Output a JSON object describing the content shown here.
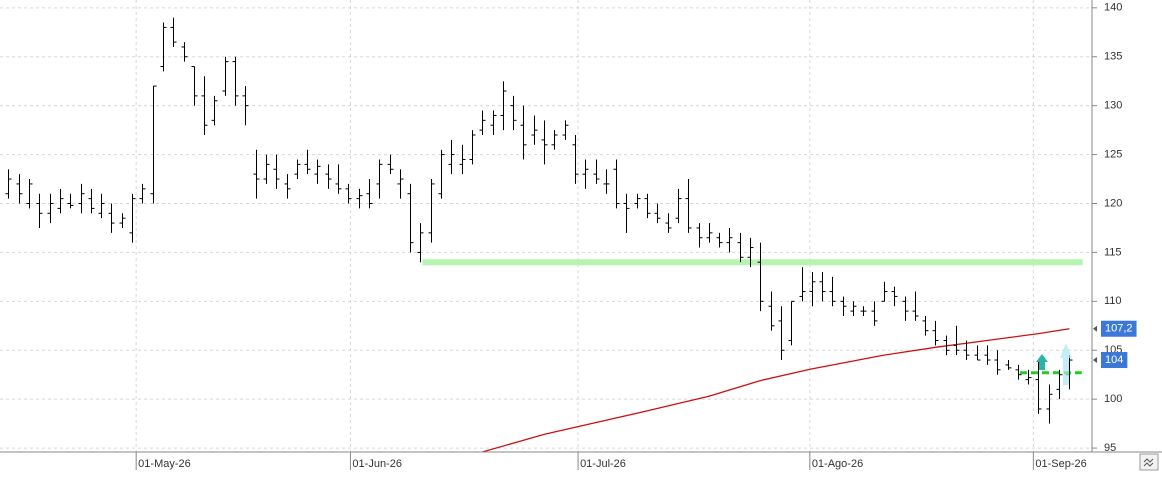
{
  "chart_data": {
    "type": "ohlc",
    "x": [
      0,
      1,
      2,
      3,
      4,
      5,
      6,
      7,
      8,
      9,
      10,
      11,
      12,
      13,
      14,
      15,
      16,
      17,
      18,
      19,
      20,
      21,
      22,
      23,
      24,
      25,
      26,
      27,
      28,
      29,
      30,
      31,
      32,
      33,
      34,
      35,
      36,
      37,
      38,
      39,
      40,
      41,
      42,
      43,
      44,
      45,
      46,
      47,
      48,
      49,
      50,
      51,
      52,
      53,
      54,
      55,
      56,
      57,
      58,
      59,
      60,
      61,
      62,
      63,
      64,
      65,
      66,
      67,
      68,
      69,
      70,
      71,
      72,
      73,
      74,
      75,
      76,
      77,
      78,
      79,
      80,
      81,
      82,
      83,
      84,
      85,
      86,
      87,
      88,
      89,
      90,
      91,
      92,
      93,
      94,
      95,
      96,
      97,
      98,
      99,
      100,
      101,
      102,
      103
    ],
    "open": [
      121,
      122,
      120,
      120,
      119,
      119.5,
      120,
      120,
      120.5,
      119,
      119,
      118,
      117,
      120.5,
      121,
      134,
      138,
      136,
      134,
      131,
      128.5,
      131.5,
      134.5,
      131,
      123,
      122.5,
      123.5,
      122,
      123,
      124,
      123,
      123,
      122,
      121.5,
      120.5,
      121,
      122,
      124,
      122,
      121,
      115,
      117,
      121,
      124,
      124,
      124.5,
      127.5,
      128,
      129,
      130,
      128,
      127,
      126.5,
      126,
      127,
      126,
      123,
      123,
      122,
      123.5,
      120,
      120,
      120.5,
      119,
      118,
      118.5,
      120.5,
      117.5,
      116.5,
      116.5,
      116,
      116,
      114.5,
      114,
      109.5,
      108,
      106,
      110.5,
      111,
      112,
      111,
      110,
      109,
      109,
      109,
      110,
      111,
      110,
      109,
      108,
      107,
      106,
      105.5,
      105,
      104.5,
      104.5,
      104,
      103.5,
      103,
      102,
      102,
      99,
      101,
      102.5
    ],
    "high": [
      123.5,
      123,
      122.5,
      121,
      121,
      121.5,
      121,
      122,
      121.5,
      121,
      120,
      119,
      121,
      122,
      132,
      138.5,
      139,
      136.5,
      134,
      133,
      131,
      135,
      135,
      132,
      125.5,
      125,
      125,
      123,
      124.5,
      125.5,
      124.5,
      124,
      124,
      122,
      121.5,
      122.5,
      124.5,
      125,
      123.5,
      122,
      118,
      122.5,
      125.5,
      126.5,
      126,
      127.5,
      129.5,
      129.5,
      132.5,
      131,
      130,
      129,
      128.5,
      127.5,
      128.5,
      127,
      124.5,
      124.5,
      123.5,
      124.5,
      121,
      121,
      121,
      120,
      119,
      121.5,
      122.5,
      118,
      118,
      117,
      117.5,
      117,
      116.5,
      116,
      111,
      109.5,
      110,
      113.5,
      113,
      113,
      112.5,
      110.5,
      110,
      109.5,
      110,
      112,
      111.5,
      110.5,
      111,
      108.5,
      108,
      106.5,
      107.5,
      106,
      105.5,
      105.5,
      105,
      104,
      103.5,
      103,
      104,
      101.5,
      103,
      104.5
    ],
    "low": [
      120.5,
      120,
      119.5,
      117.5,
      118,
      119,
      119.5,
      119,
      119,
      118.5,
      117,
      117.5,
      116,
      120,
      120,
      133.5,
      136,
      134.5,
      130,
      127,
      128,
      131,
      130,
      128,
      120.5,
      122,
      121.5,
      120.5,
      122.5,
      123,
      122,
      121.5,
      121,
      120,
      119.5,
      119.5,
      120.5,
      123,
      120.5,
      115,
      114,
      116,
      120.5,
      123,
      123,
      124,
      127,
      127,
      127.5,
      127.5,
      124.5,
      126,
      124,
      125.5,
      126.5,
      122,
      121.5,
      122,
      121,
      119.5,
      117,
      119.5,
      118.5,
      118,
      117,
      118,
      117,
      115.5,
      116,
      115.5,
      115,
      114,
      113.5,
      109,
      107,
      104,
      105.5,
      110,
      109.5,
      110,
      109.5,
      108.5,
      108.5,
      108.5,
      107.5,
      110,
      109.5,
      108,
      108,
      106.5,
      105.5,
      104.5,
      104.5,
      104,
      104,
      103.5,
      102.5,
      103,
      102,
      101.5,
      98.5,
      97.5,
      100,
      101
    ],
    "close": [
      122.5,
      121,
      122,
      119,
      120,
      120.5,
      119.8,
      121,
      119.5,
      120,
      118,
      118.5,
      120.5,
      121.5,
      132,
      138,
      136.5,
      135,
      131,
      128,
      130.5,
      134.5,
      131,
      130,
      122.5,
      124,
      122.5,
      121.5,
      124,
      123.5,
      123.8,
      122.5,
      121.5,
      120.5,
      120.8,
      120,
      124,
      123.5,
      122.5,
      116,
      117,
      122,
      125,
      125,
      124.5,
      127,
      128.5,
      129,
      131.5,
      128.5,
      126,
      127.5,
      126,
      127,
      128,
      123,
      123.5,
      122.5,
      122,
      120,
      119.5,
      120.5,
      119,
      118.5,
      117.5,
      120.5,
      117.5,
      116.5,
      117,
      116,
      116.5,
      114.5,
      115.5,
      110,
      107.5,
      105,
      110,
      111,
      112,
      111,
      110,
      109.5,
      109.5,
      109,
      108,
      111,
      110.5,
      109,
      108.5,
      107,
      106,
      105,
      105,
      104.5,
      104,
      104,
      103,
      103.2,
      102.5,
      102.2,
      99,
      100.5,
      102.5,
      104
    ],
    "bar_color": "#000000",
    "moving_average": {
      "color": "#cc1111",
      "x": [
        46,
        52,
        57,
        62,
        68,
        73,
        78,
        85,
        90,
        95,
        100,
        103
      ],
      "values": [
        94.6,
        96.4,
        97.6,
        98.8,
        100.3,
        101.9,
        103.1,
        104.5,
        105.3,
        106,
        106.7,
        107.2
      ]
    },
    "levels": [
      {
        "value": 114,
        "x": [
          40.2,
          104.3
        ],
        "color": "#b6f5b0",
        "style": "solid"
      },
      {
        "value": 102.7,
        "x": [
          98.2,
          104.2
        ],
        "color": "#22cc22",
        "style": "dashed"
      }
    ],
    "price_labels": [
      {
        "value": 107.2,
        "label": "107,2",
        "color": "#3c78d8"
      },
      {
        "value": 104,
        "label": "104",
        "color": "#3c78d8"
      }
    ],
    "xlim": [
      -0.82,
      105.0
    ],
    "xticks": [
      {
        "value": 12.4,
        "label": "01-May-26"
      },
      {
        "value": 33.2,
        "label": "01-Jun-26"
      },
      {
        "value": 55.3,
        "label": "01-Jul-26"
      },
      {
        "value": 77.8,
        "label": "01-Ago-26"
      },
      {
        "value": 99.5,
        "label": "01-Sep-26"
      }
    ],
    "ylim": [
      94.6,
      140.8
    ],
    "yticks": [
      95,
      100,
      105,
      110,
      115,
      120,
      125,
      130,
      135,
      140
    ],
    "grid": true
  }
}
